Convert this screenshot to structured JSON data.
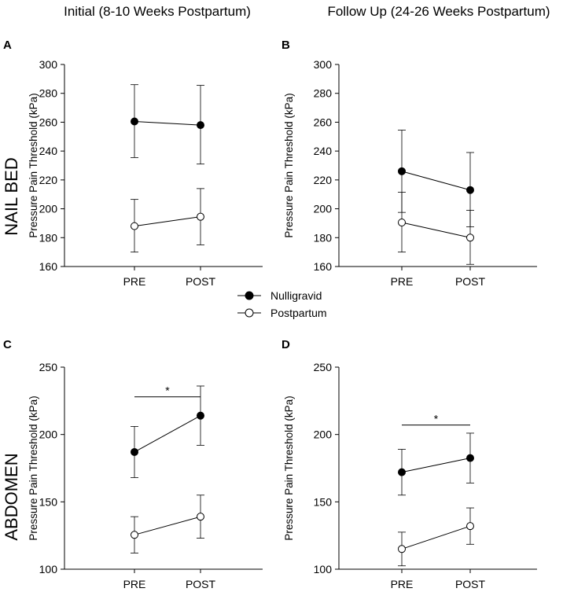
{
  "figure": {
    "column_titles": [
      "Initial (8-10 Weeks Postpartum)",
      "Follow Up (24-26 Weeks Postpartum)"
    ],
    "row_labels": [
      "NAIL BED",
      "ABDOMEN"
    ],
    "legend": [
      {
        "label": "Nulligravid",
        "marker": "filled-circle",
        "color": "#000000"
      },
      {
        "label": "Postpartum",
        "marker": "open-circle",
        "color": "#ffffff"
      }
    ]
  },
  "chart_data": [
    {
      "panel": "A",
      "type": "line",
      "xlabel": "",
      "ylabel": "Pressure Pain Threshold (kPa)",
      "categories": [
        "PRE",
        "POST"
      ],
      "ylim": [
        160,
        300
      ],
      "yticks": [
        160,
        180,
        200,
        220,
        240,
        260,
        280,
        300
      ],
      "series": [
        {
          "name": "Nulligravid",
          "values": [
            260.5,
            258
          ],
          "error_low": [
            235.5,
            231
          ],
          "error_high": [
            286,
            285.5
          ]
        },
        {
          "name": "Postpartum",
          "values": [
            188,
            194.5
          ],
          "error_low": [
            170,
            175
          ],
          "error_high": [
            206.5,
            214
          ]
        }
      ],
      "significance": null
    },
    {
      "panel": "B",
      "type": "line",
      "xlabel": "",
      "ylabel": "Pressure Pain Threshold (kPa)",
      "categories": [
        "PRE",
        "POST"
      ],
      "ylim": [
        160,
        300
      ],
      "yticks": [
        160,
        180,
        200,
        220,
        240,
        260,
        280,
        300
      ],
      "series": [
        {
          "name": "Nulligravid",
          "values": [
            226,
            213
          ],
          "error_low": [
            197.5,
            187.5
          ],
          "error_high": [
            254.5,
            239
          ]
        },
        {
          "name": "Postpartum",
          "values": [
            190.5,
            180
          ],
          "error_low": [
            170,
            161.5
          ],
          "error_high": [
            211.5,
            199
          ]
        }
      ],
      "significance": null
    },
    {
      "panel": "C",
      "type": "line",
      "xlabel": "",
      "ylabel": "Pressure Pain Threshold (kPa)",
      "categories": [
        "PRE",
        "POST"
      ],
      "ylim": [
        100,
        250
      ],
      "yticks": [
        100,
        150,
        200,
        250
      ],
      "series": [
        {
          "name": "Nulligravid",
          "values": [
            187,
            214
          ],
          "error_low": [
            168,
            192
          ],
          "error_high": [
            206,
            236
          ]
        },
        {
          "name": "Postpartum",
          "values": [
            125.5,
            139
          ],
          "error_low": [
            112,
            123
          ],
          "error_high": [
            139,
            155
          ]
        }
      ],
      "significance": {
        "label": "*",
        "y": 228
      }
    },
    {
      "panel": "D",
      "type": "line",
      "xlabel": "",
      "ylabel": "Pressure Pain Threshold (kPa)",
      "categories": [
        "PRE",
        "POST"
      ],
      "ylim": [
        100,
        250
      ],
      "yticks": [
        100,
        150,
        200,
        250
      ],
      "series": [
        {
          "name": "Nulligravid",
          "values": [
            172,
            182.5
          ],
          "error_low": [
            155,
            164
          ],
          "error_high": [
            189,
            201
          ]
        },
        {
          "name": "Postpartum",
          "values": [
            115,
            132
          ],
          "error_low": [
            102.5,
            118.5
          ],
          "error_high": [
            127.5,
            145.5
          ]
        }
      ],
      "significance": {
        "label": "*",
        "y": 207
      }
    }
  ]
}
